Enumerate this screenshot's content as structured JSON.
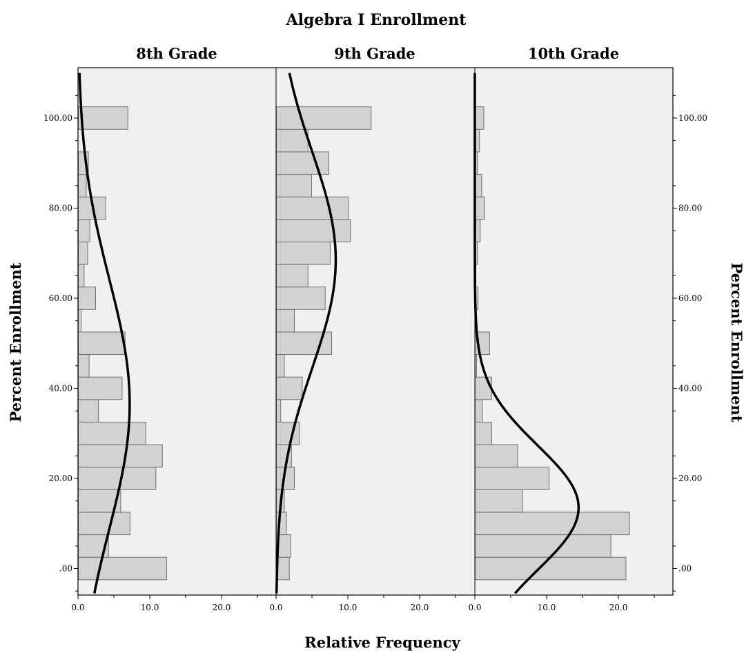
{
  "chart_data": {
    "type": "bar",
    "title": "Algebra I Enrollment",
    "xlabel": "Relative Frequency",
    "ylabel_left": "Percent Enrollment",
    "ylabel_right": "Percent Enrollment",
    "orientation": "horizontal",
    "xlim": [
      0,
      27.5
    ],
    "ylim": [
      -6,
      110
    ],
    "x_ticks": [
      "0.0",
      "10.0",
      "20.0"
    ],
    "y_ticks": [
      ".00",
      "20.00",
      "40.00",
      "60.00",
      "80.00",
      "100.00"
    ],
    "bin_centers": [
      0,
      5,
      10,
      15,
      20,
      25,
      30,
      35,
      40,
      45,
      50,
      55,
      60,
      65,
      70,
      75,
      80,
      85,
      90,
      95,
      100
    ],
    "panels": [
      {
        "name": "8th Grade",
        "values": [
          12.3,
          4.2,
          7.2,
          5.9,
          10.8,
          11.7,
          9.4,
          2.8,
          6.1,
          1.5,
          6.5,
          0.4,
          2.4,
          0.8,
          1.3,
          1.6,
          3.8,
          1.1,
          1.4,
          0.0,
          6.9
        ],
        "normal_curve": {
          "mean": 36.5,
          "sd": 27.7
        }
      },
      {
        "name": "9th Grade",
        "values": [
          1.8,
          2.0,
          1.4,
          1.1,
          2.5,
          2.1,
          3.2,
          0.6,
          3.6,
          1.1,
          7.7,
          2.5,
          6.8,
          4.4,
          7.5,
          10.3,
          10.0,
          4.9,
          7.3,
          4.4,
          13.2
        ],
        "normal_curve": {
          "mean": 68.5,
          "sd": 24.0
        }
      },
      {
        "name": "10th Grade",
        "values": [
          21.0,
          18.9,
          21.5,
          6.6,
          10.3,
          5.9,
          2.3,
          1.0,
          2.3,
          0.2,
          2.0,
          0.0,
          0.4,
          0.1,
          0.3,
          0.7,
          1.3,
          0.9,
          0.3,
          0.6,
          1.2
        ],
        "normal_curve": {
          "mean": 13.5,
          "sd": 13.8
        }
      }
    ],
    "grid": false,
    "legend": "none",
    "colors": {
      "panel_background": "#f0f0f0",
      "bar_fill": "#d2d2d2",
      "bar_stroke": "#6f6f6f",
      "curve": "#000000"
    }
  }
}
